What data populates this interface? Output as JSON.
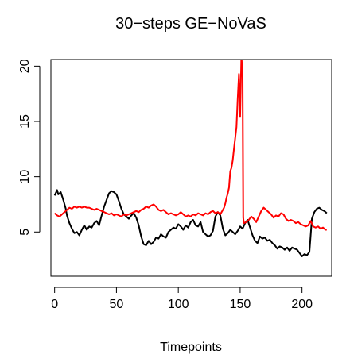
{
  "chart_data": {
    "type": "line",
    "title": "30−steps GE−NoVaS",
    "xlabel": "Timepoints",
    "ylabel": "",
    "xlim": [
      -3,
      224
    ],
    "ylim": [
      1,
      20.6
    ],
    "xticks": [
      0,
      50,
      100,
      150,
      200
    ],
    "xtick_labels": [
      "0",
      "50",
      "100",
      "150",
      "200"
    ],
    "yticks": [
      5,
      10,
      15,
      20
    ],
    "ytick_labels": [
      "5",
      "10",
      "15",
      "20"
    ],
    "grid": false,
    "legend": "none",
    "series": [
      {
        "color": "#000000",
        "x": [
          0,
          2,
          3,
          5,
          7,
          9,
          10,
          12,
          14,
          16,
          18,
          20,
          22,
          24,
          26,
          28,
          30,
          32,
          34,
          36,
          38,
          40,
          42,
          44,
          46,
          48,
          50,
          52,
          54,
          56,
          58,
          60,
          62,
          64,
          66,
          68,
          70,
          72,
          74,
          76,
          78,
          80,
          82,
          84,
          86,
          88,
          90,
          92,
          94,
          96,
          98,
          100,
          102,
          104,
          106,
          108,
          110,
          112,
          114,
          116,
          118,
          120,
          122,
          124,
          126,
          128,
          130,
          132,
          134,
          136,
          138,
          140,
          142,
          144,
          146,
          148,
          150,
          152,
          154,
          156,
          158,
          160,
          162,
          164,
          166,
          168,
          170,
          172,
          174,
          176,
          178,
          180,
          182,
          184,
          186,
          188,
          190,
          192,
          194,
          196,
          198,
          200,
          202,
          204,
          206,
          208,
          210,
          212,
          214,
          216,
          218,
          220
        ],
        "y": [
          8.3,
          8.8,
          8.4,
          8.6,
          7.9,
          7.1,
          6.5,
          5.8,
          5.3,
          4.9,
          5.0,
          4.7,
          5.2,
          5.6,
          5.2,
          5.5,
          5.4,
          5.8,
          6.0,
          5.6,
          6.5,
          7.3,
          7.9,
          8.5,
          8.7,
          8.6,
          8.4,
          7.8,
          7.1,
          6.6,
          6.4,
          6.2,
          6.5,
          6.7,
          6.3,
          5.6,
          4.6,
          3.9,
          3.8,
          4.2,
          3.9,
          4.1,
          4.5,
          4.4,
          4.8,
          4.6,
          4.5,
          5.0,
          5.2,
          5.4,
          5.3,
          5.7,
          5.5,
          5.2,
          5.6,
          5.4,
          5.9,
          6.1,
          5.6,
          5.5,
          5.9,
          5.0,
          4.8,
          4.6,
          4.7,
          5.1,
          6.4,
          6.8,
          6.5,
          5.3,
          4.7,
          4.9,
          5.2,
          5.0,
          4.8,
          5.1,
          5.5,
          5.3,
          5.8,
          6.1,
          5.4,
          4.7,
          4.2,
          4.0,
          4.6,
          4.4,
          4.5,
          4.2,
          4.3,
          4.0,
          3.8,
          3.5,
          3.7,
          3.6,
          3.4,
          3.6,
          3.3,
          3.6,
          3.5,
          3.4,
          3.1,
          2.8,
          3.0,
          2.9,
          3.2,
          6.2,
          6.8,
          7.1,
          7.2,
          7.0,
          6.9,
          6.7
        ]
      },
      {
        "color": "#ff0000",
        "x": [
          0,
          2,
          4,
          6,
          8,
          10,
          12,
          14,
          16,
          18,
          20,
          22,
          24,
          26,
          28,
          30,
          32,
          34,
          36,
          38,
          40,
          42,
          44,
          46,
          48,
          50,
          52,
          54,
          56,
          58,
          60,
          62,
          64,
          66,
          68,
          70,
          72,
          74,
          76,
          78,
          80,
          82,
          84,
          86,
          88,
          90,
          92,
          94,
          96,
          98,
          100,
          102,
          104,
          106,
          108,
          110,
          112,
          114,
          116,
          118,
          120,
          122,
          124,
          126,
          128,
          130,
          132,
          134,
          136,
          137,
          138,
          139,
          140,
          141,
          142,
          143,
          144,
          145,
          146,
          147,
          148,
          149,
          150,
          151,
          152,
          152.5,
          153,
          155,
          157,
          159,
          161,
          163,
          165,
          167,
          169,
          171,
          173,
          175,
          177,
          179,
          181,
          183,
          185,
          187,
          189,
          191,
          193,
          195,
          197,
          199,
          201,
          203,
          205,
          207,
          209,
          211,
          213,
          215,
          217,
          219,
          220
        ],
        "y": [
          6.7,
          6.5,
          6.4,
          6.6,
          6.8,
          7.0,
          7.2,
          7.1,
          7.3,
          7.2,
          7.3,
          7.2,
          7.3,
          7.2,
          7.2,
          7.1,
          7.0,
          7.1,
          7.0,
          6.9,
          6.8,
          6.7,
          6.6,
          6.7,
          6.5,
          6.6,
          6.5,
          6.4,
          6.6,
          6.5,
          6.6,
          6.7,
          6.8,
          6.9,
          6.8,
          7.0,
          7.1,
          7.3,
          7.2,
          7.4,
          7.5,
          7.3,
          7.0,
          6.9,
          7.0,
          6.8,
          6.6,
          6.7,
          6.6,
          6.5,
          6.6,
          6.8,
          6.6,
          6.4,
          6.5,
          6.4,
          6.6,
          6.5,
          6.7,
          6.6,
          6.5,
          6.7,
          6.6,
          6.8,
          6.9,
          6.7,
          6.8,
          6.6,
          7.0,
          7.2,
          7.6,
          8.1,
          8.5,
          9.0,
          10.5,
          10.8,
          11.5,
          12.5,
          13.5,
          14.5,
          17.0,
          19.3,
          15.4,
          21.0,
          19.0,
          6.3,
          5.8,
          5.9,
          6.1,
          6.4,
          6.2,
          5.9,
          6.4,
          6.9,
          7.2,
          7.0,
          6.8,
          6.6,
          6.3,
          6.5,
          6.4,
          6.7,
          6.6,
          6.2,
          6.0,
          6.1,
          6.0,
          5.8,
          5.9,
          5.7,
          5.6,
          5.5,
          5.6,
          6.0,
          5.5,
          5.4,
          5.5,
          5.3,
          5.4,
          5.2,
          5.2
        ]
      }
    ]
  }
}
